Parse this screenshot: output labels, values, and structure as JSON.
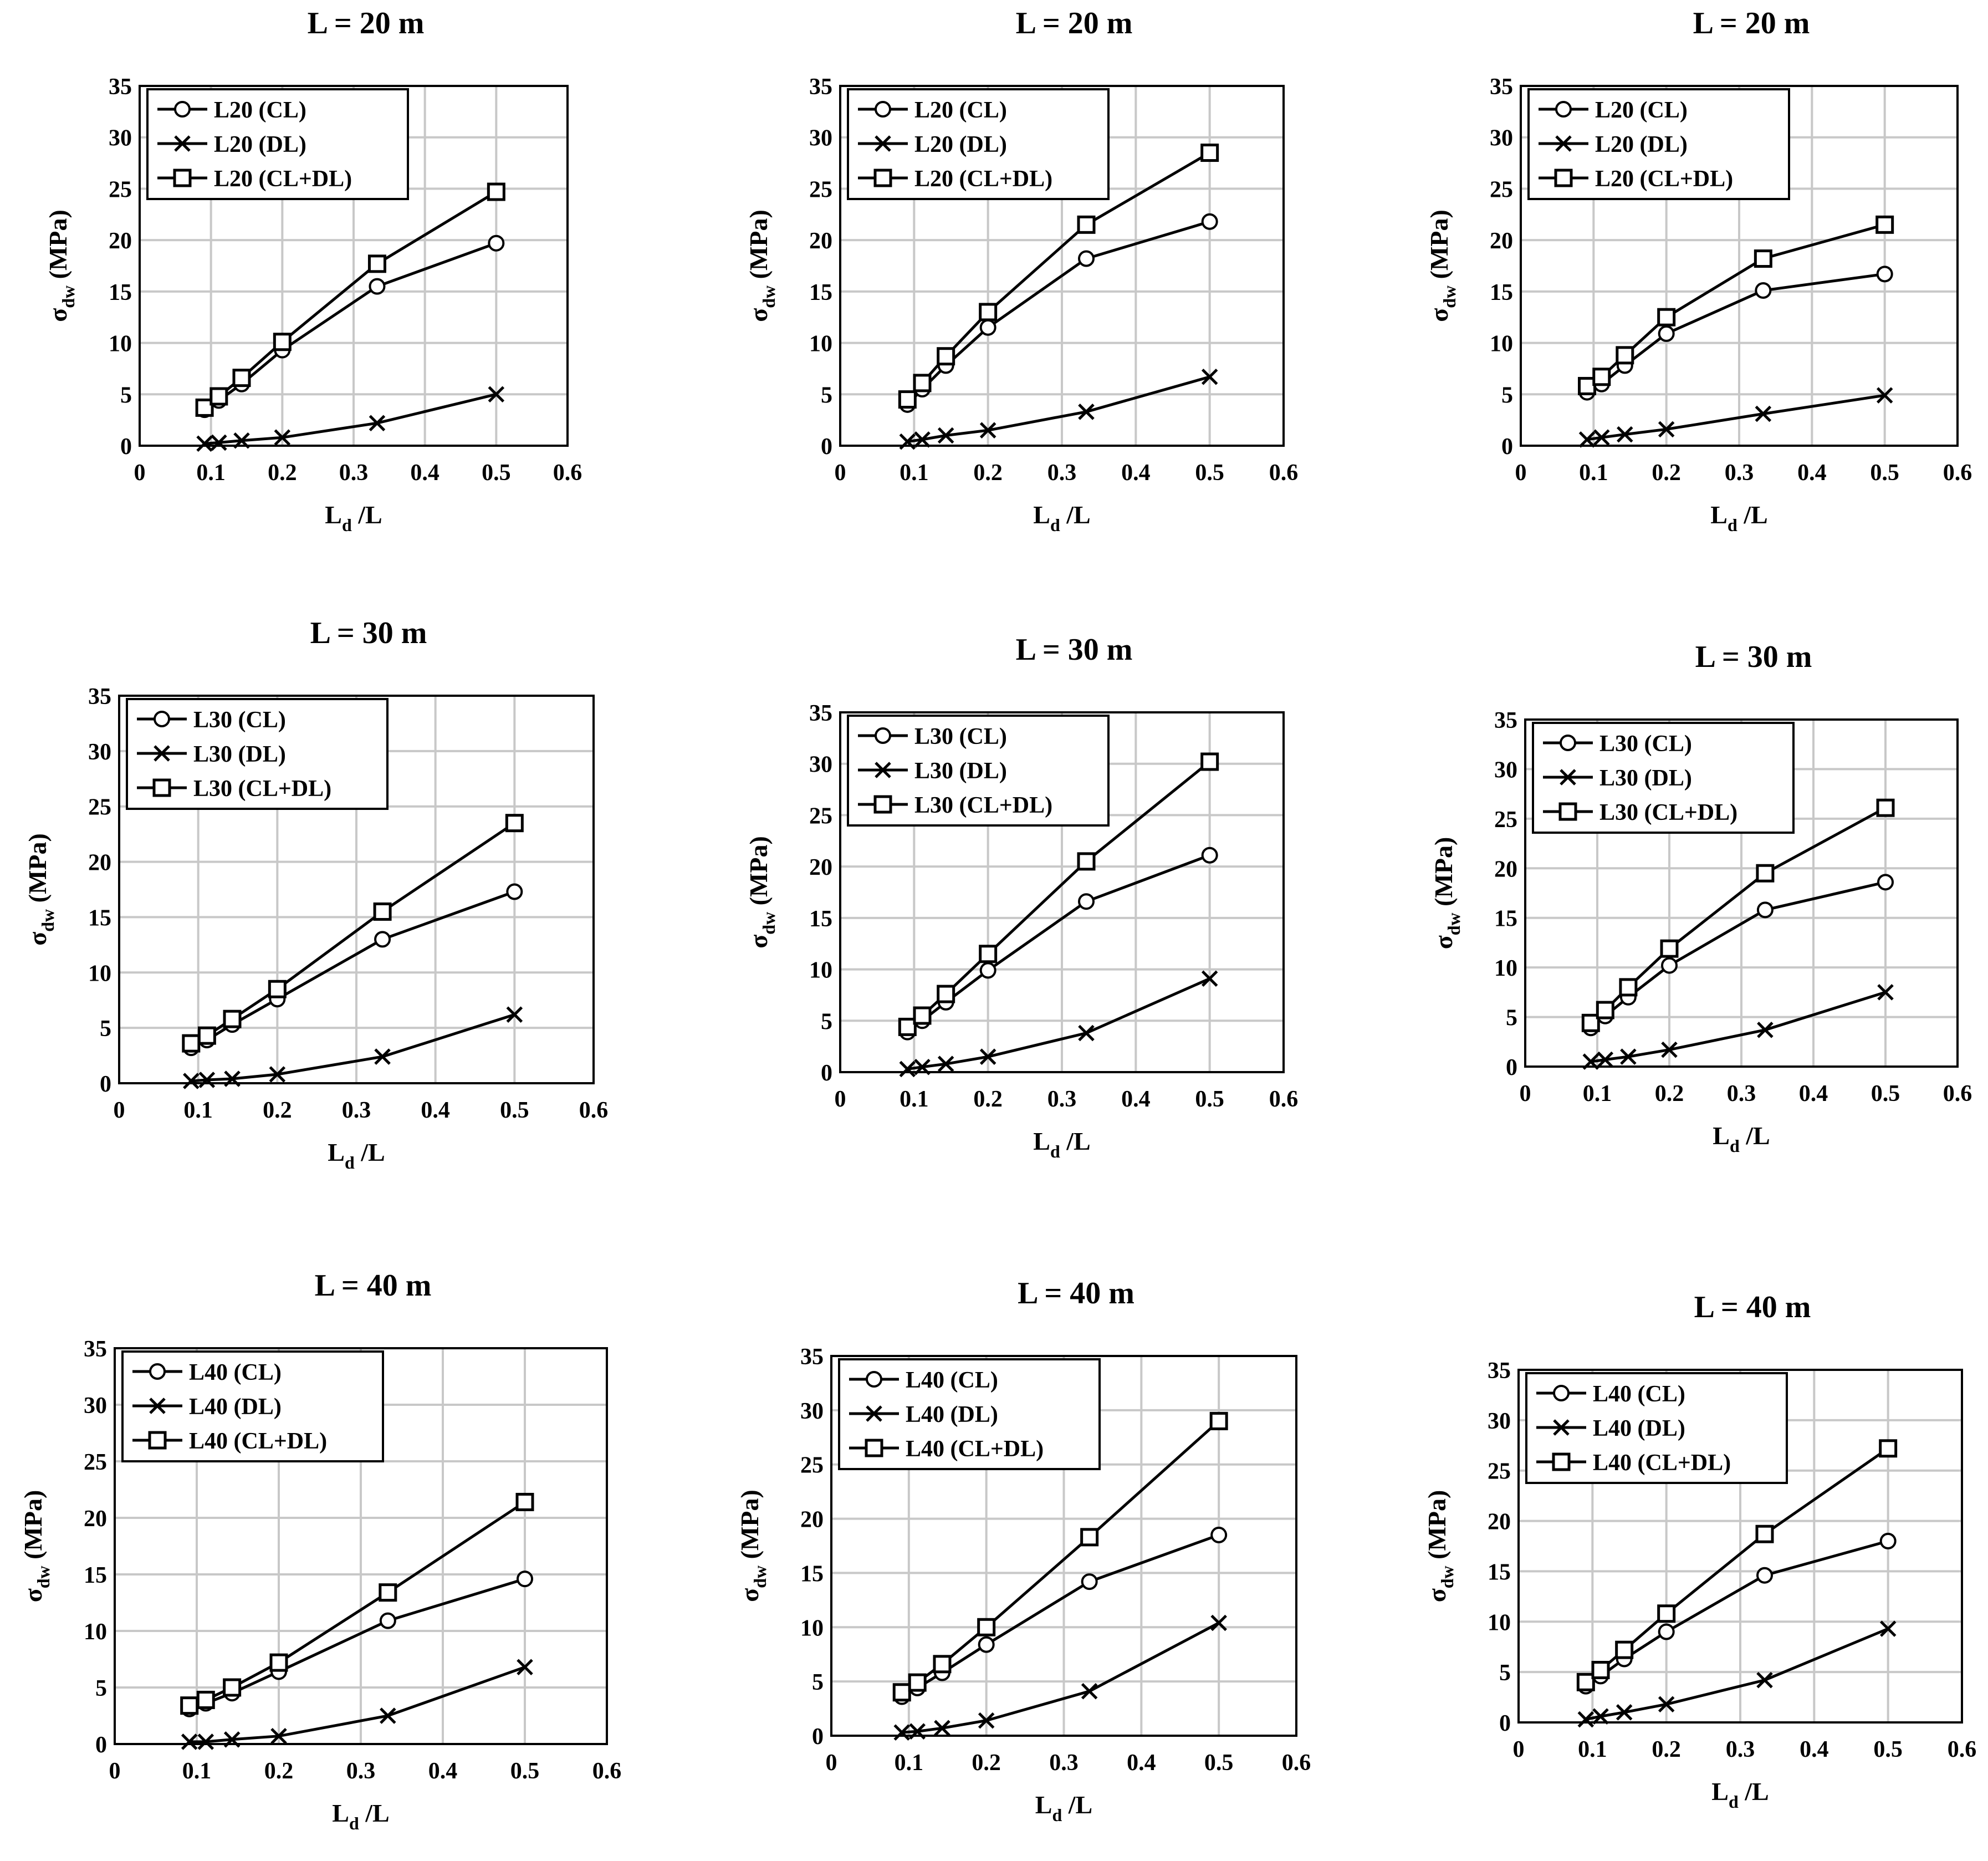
{
  "colors": {
    "line": "#000000",
    "grid": "#c8c8c8",
    "background": "#ffffff"
  },
  "legend_markers": [
    "circle",
    "x",
    "square"
  ],
  "chart_data": [
    {
      "type": "line",
      "title": "L = 20 m",
      "xlabel": "L",
      "xlabel_sub": "d",
      "xlabel_tail": " /L",
      "ylabel": "σ",
      "ylabel_sub": "dw",
      "ylabel_tail": " (MPa)",
      "xlim": [
        0,
        0.6
      ],
      "ylim": [
        0,
        35
      ],
      "xticks": [
        "0",
        "0.1",
        "0.2",
        "0.3",
        "0.4",
        "0.5",
        "0.6"
      ],
      "yticks": [
        "0",
        "5",
        "10",
        "15",
        "20",
        "25",
        "30",
        "35"
      ],
      "x": [
        0.091,
        0.111,
        0.143,
        0.2,
        0.333,
        0.5
      ],
      "series": [
        {
          "name": "L20 (CL)",
          "marker": "circle",
          "values": [
            3.5,
            4.4,
            6.0,
            9.3,
            15.5,
            19.7
          ]
        },
        {
          "name": "L20 (DL)",
          "marker": "x",
          "values": [
            0.2,
            0.3,
            0.5,
            0.8,
            2.2,
            5.0
          ]
        },
        {
          "name": "L20 (CL+DL)",
          "marker": "square",
          "values": [
            3.7,
            4.8,
            6.6,
            10.1,
            17.7,
            24.7
          ]
        }
      ]
    },
    {
      "type": "line",
      "title": "L = 20 m",
      "xlabel": "L",
      "xlabel_sub": "d",
      "xlabel_tail": " /L",
      "ylabel": "σ",
      "ylabel_sub": "dw",
      "ylabel_tail": " (MPa)",
      "xlim": [
        0,
        0.6
      ],
      "ylim": [
        0,
        35
      ],
      "xticks": [
        "0",
        "0.1",
        "0.2",
        "0.3",
        "0.4",
        "0.5",
        "0.6"
      ],
      "yticks": [
        "0",
        "5",
        "10",
        "15",
        "20",
        "25",
        "30",
        "35"
      ],
      "x": [
        0.091,
        0.111,
        0.143,
        0.2,
        0.333,
        0.5
      ],
      "series": [
        {
          "name": "L20 (CL)",
          "marker": "circle",
          "values": [
            4.0,
            5.5,
            7.8,
            11.5,
            18.2,
            21.8
          ]
        },
        {
          "name": "L20 (DL)",
          "marker": "x",
          "values": [
            0.4,
            0.6,
            1.0,
            1.5,
            3.3,
            6.7
          ]
        },
        {
          "name": "L20 (CL+DL)",
          "marker": "square",
          "values": [
            4.5,
            6.1,
            8.7,
            13.0,
            21.5,
            28.5
          ]
        }
      ]
    },
    {
      "type": "line",
      "title": "L = 20 m",
      "xlabel": "L",
      "xlabel_sub": "d",
      "xlabel_tail": " /L",
      "ylabel": "σ",
      "ylabel_sub": "dw",
      "ylabel_tail": " (MPa)",
      "xlim": [
        0,
        0.6
      ],
      "ylim": [
        0,
        35
      ],
      "xticks": [
        "0",
        "0.1",
        "0.2",
        "0.3",
        "0.4",
        "0.5",
        "0.6"
      ],
      "yticks": [
        "0",
        "5",
        "10",
        "15",
        "20",
        "25",
        "30",
        "35"
      ],
      "x": [
        0.091,
        0.111,
        0.143,
        0.2,
        0.333,
        0.5
      ],
      "series": [
        {
          "name": "L20 (CL)",
          "marker": "circle",
          "values": [
            5.2,
            6.0,
            7.8,
            10.9,
            15.1,
            16.7
          ]
        },
        {
          "name": "L20 (DL)",
          "marker": "x",
          "values": [
            0.6,
            0.8,
            1.1,
            1.6,
            3.1,
            4.9
          ]
        },
        {
          "name": "L20 (CL+DL)",
          "marker": "square",
          "values": [
            5.8,
            6.7,
            8.8,
            12.5,
            18.2,
            21.5
          ]
        }
      ]
    },
    {
      "type": "line",
      "title": "L = 30 m",
      "xlabel": "L",
      "xlabel_sub": "d",
      "xlabel_tail": " /L",
      "ylabel": "σ",
      "ylabel_sub": "dw",
      "ylabel_tail": " (MPa)",
      "xlim": [
        0,
        0.6
      ],
      "ylim": [
        0,
        35
      ],
      "xticks": [
        "0",
        "0.1",
        "0.2",
        "0.3",
        "0.4",
        "0.5",
        "0.6"
      ],
      "yticks": [
        "0",
        "5",
        "10",
        "15",
        "20",
        "25",
        "30",
        "35"
      ],
      "x": [
        0.091,
        0.111,
        0.143,
        0.2,
        0.333,
        0.5
      ],
      "series": [
        {
          "name": "L30 (CL)",
          "marker": "circle",
          "values": [
            3.2,
            3.9,
            5.3,
            7.6,
            13.0,
            17.3
          ]
        },
        {
          "name": "L30 (DL)",
          "marker": "x",
          "values": [
            0.2,
            0.3,
            0.4,
            0.8,
            2.4,
            6.2
          ]
        },
        {
          "name": "L30 (CL+DL)",
          "marker": "square",
          "values": [
            3.6,
            4.3,
            5.8,
            8.5,
            15.5,
            23.5
          ]
        }
      ]
    },
    {
      "type": "line",
      "title": "L = 30 m",
      "xlabel": "L",
      "xlabel_sub": "d",
      "xlabel_tail": " /L",
      "ylabel": "σ",
      "ylabel_sub": "dw",
      "ylabel_tail": " (MPa)",
      "xlim": [
        0,
        0.6
      ],
      "ylim": [
        0,
        35
      ],
      "xticks": [
        "0",
        "0.1",
        "0.2",
        "0.3",
        "0.4",
        "0.5",
        "0.6"
      ],
      "yticks": [
        "0",
        "5",
        "10",
        "15",
        "20",
        "25",
        "30",
        "35"
      ],
      "x": [
        0.091,
        0.111,
        0.143,
        0.2,
        0.333,
        0.5
      ],
      "series": [
        {
          "name": "L30 (CL)",
          "marker": "circle",
          "values": [
            3.9,
            5.0,
            6.8,
            9.9,
            16.6,
            21.1
          ]
        },
        {
          "name": "L30 (DL)",
          "marker": "x",
          "values": [
            0.3,
            0.5,
            0.8,
            1.5,
            3.8,
            9.1
          ]
        },
        {
          "name": "L30 (CL+DL)",
          "marker": "square",
          "values": [
            4.4,
            5.5,
            7.6,
            11.5,
            20.5,
            30.2
          ]
        }
      ]
    },
    {
      "type": "line",
      "title": "L = 30 m",
      "xlabel": "L",
      "xlabel_sub": "d",
      "xlabel_tail": " /L",
      "ylabel": "σ",
      "ylabel_sub": "dw",
      "ylabel_tail": " (MPa)",
      "xlim": [
        0,
        0.6
      ],
      "ylim": [
        0,
        35
      ],
      "xticks": [
        "0",
        "0.1",
        "0.2",
        "0.3",
        "0.4",
        "0.5",
        "0.6"
      ],
      "yticks": [
        "0",
        "5",
        "10",
        "15",
        "20",
        "25",
        "30",
        "35"
      ],
      "x": [
        0.091,
        0.111,
        0.143,
        0.2,
        0.333,
        0.5
      ],
      "series": [
        {
          "name": "L30 (CL)",
          "marker": "circle",
          "values": [
            3.9,
            5.1,
            7.0,
            10.2,
            15.8,
            18.6
          ]
        },
        {
          "name": "L30 (DL)",
          "marker": "x",
          "values": [
            0.5,
            0.7,
            1.0,
            1.7,
            3.7,
            7.5
          ]
        },
        {
          "name": "L30 (CL+DL)",
          "marker": "square",
          "values": [
            4.4,
            5.7,
            8.0,
            11.9,
            19.5,
            26.1
          ]
        }
      ]
    },
    {
      "type": "line",
      "title": "L = 40 m",
      "xlabel": "L",
      "xlabel_sub": "d",
      "xlabel_tail": " /L",
      "ylabel": "σ",
      "ylabel_sub": "dw",
      "ylabel_tail": " (MPa)",
      "xlim": [
        0,
        0.6
      ],
      "ylim": [
        0,
        35
      ],
      "xticks": [
        "0",
        "0.1",
        "0.2",
        "0.3",
        "0.4",
        "0.5",
        "0.6"
      ],
      "yticks": [
        "0",
        "5",
        "10",
        "15",
        "20",
        "25",
        "30",
        "35"
      ],
      "x": [
        0.091,
        0.111,
        0.143,
        0.2,
        0.333,
        0.5
      ],
      "series": [
        {
          "name": "L40 (CL)",
          "marker": "circle",
          "values": [
            3.1,
            3.6,
            4.5,
            6.4,
            10.9,
            14.6
          ]
        },
        {
          "name": "L40 (DL)",
          "marker": "x",
          "values": [
            0.2,
            0.2,
            0.4,
            0.7,
            2.5,
            6.8
          ]
        },
        {
          "name": "L40 (CL+DL)",
          "marker": "square",
          "values": [
            3.4,
            3.9,
            5.0,
            7.2,
            13.4,
            21.4
          ]
        }
      ]
    },
    {
      "type": "line",
      "title": "L = 40 m",
      "xlabel": "L",
      "xlabel_sub": "d",
      "xlabel_tail": " /L",
      "ylabel": "σ",
      "ylabel_sub": "dw",
      "ylabel_tail": " (MPa)",
      "xlim": [
        0,
        0.6
      ],
      "ylim": [
        0,
        35
      ],
      "xticks": [
        "0",
        "0.1",
        "0.2",
        "0.3",
        "0.4",
        "0.5",
        "0.6"
      ],
      "yticks": [
        "0",
        "5",
        "10",
        "15",
        "20",
        "25",
        "30",
        "35"
      ],
      "x": [
        0.091,
        0.111,
        0.143,
        0.2,
        0.333,
        0.5
      ],
      "series": [
        {
          "name": "L40 (CL)",
          "marker": "circle",
          "values": [
            3.6,
            4.4,
            5.8,
            8.4,
            14.2,
            18.5
          ]
        },
        {
          "name": "L40 (DL)",
          "marker": "x",
          "values": [
            0.3,
            0.4,
            0.7,
            1.4,
            4.1,
            10.4
          ]
        },
        {
          "name": "L40 (CL+DL)",
          "marker": "square",
          "values": [
            4.0,
            4.9,
            6.6,
            10.0,
            18.3,
            29.0
          ]
        }
      ]
    },
    {
      "type": "line",
      "title": "L = 40 m",
      "xlabel": "L",
      "xlabel_sub": "d",
      "xlabel_tail": " /L",
      "ylabel": "σ",
      "ylabel_sub": "dw",
      "ylabel_tail": " (MPa)",
      "xlim": [
        0,
        0.6
      ],
      "ylim": [
        0,
        35
      ],
      "xticks": [
        "0",
        "0.1",
        "0.2",
        "0.3",
        "0.4",
        "0.5",
        "0.6"
      ],
      "yticks": [
        "0",
        "5",
        "10",
        "15",
        "20",
        "25",
        "30",
        "35"
      ],
      "x": [
        0.091,
        0.111,
        0.143,
        0.2,
        0.333,
        0.5
      ],
      "series": [
        {
          "name": "L40 (CL)",
          "marker": "circle",
          "values": [
            3.6,
            4.6,
            6.3,
            9.0,
            14.6,
            18.0
          ]
        },
        {
          "name": "L40 (DL)",
          "marker": "x",
          "values": [
            0.3,
            0.6,
            1.0,
            1.8,
            4.2,
            9.3
          ]
        },
        {
          "name": "L40 (CL+DL)",
          "marker": "square",
          "values": [
            4.0,
            5.2,
            7.2,
            10.8,
            18.7,
            27.2
          ]
        }
      ]
    }
  ]
}
